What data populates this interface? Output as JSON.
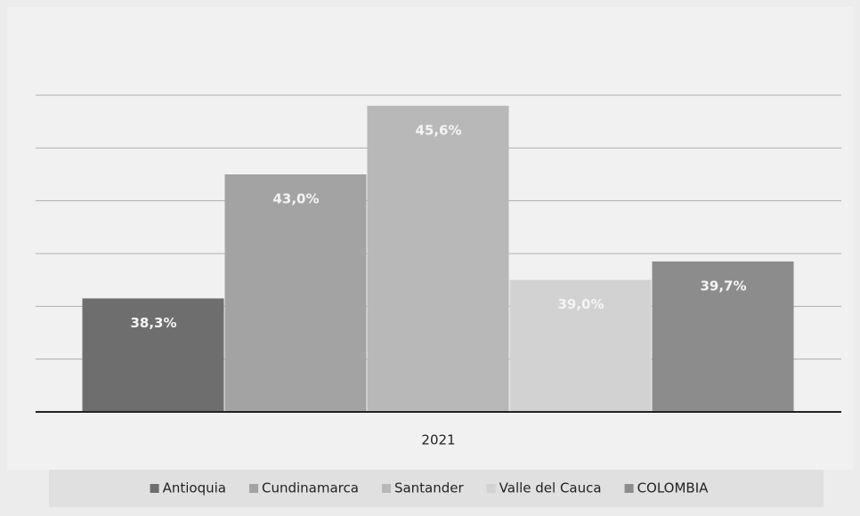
{
  "chart_data": {
    "type": "bar",
    "categories": [
      "2021"
    ],
    "series": [
      {
        "name": "Antioquia",
        "color": "#6e6e6e",
        "values": [
          38.3
        ],
        "value_labels": [
          "38,3%"
        ]
      },
      {
        "name": "Cundinamarca",
        "color": "#a3a3a3",
        "values": [
          43.0
        ],
        "value_labels": [
          "43,0%"
        ]
      },
      {
        "name": "Santander",
        "color": "#b8b8b8",
        "values": [
          45.6
        ],
        "value_labels": [
          "45,6%"
        ]
      },
      {
        "name": "Valle del Cauca",
        "color": "#d2d2d2",
        "values": [
          39.0
        ],
        "value_labels": [
          "39,0%"
        ]
      },
      {
        "name": "COLOMBIA",
        "color": "#8c8c8c",
        "values": [
          39.7
        ],
        "value_labels": [
          "39,7%"
        ]
      }
    ],
    "ylim": [
      34,
      46
    ],
    "yticks": [
      34,
      36,
      38,
      40,
      42,
      44,
      46
    ],
    "grid": true,
    "legend": "bottom"
  }
}
